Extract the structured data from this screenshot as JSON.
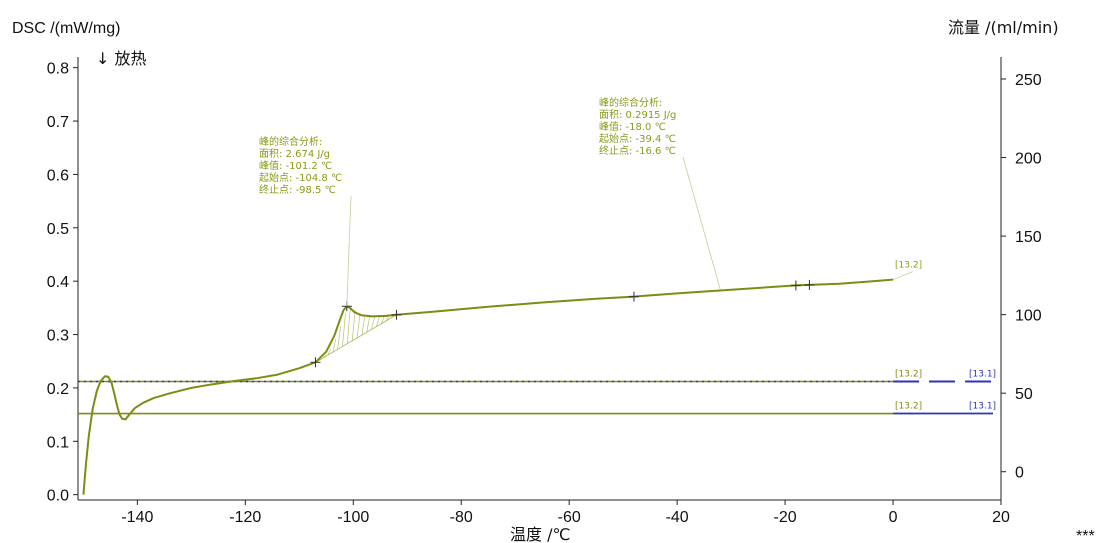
{
  "chart_data": {
    "type": "line",
    "ylabel_left": "DSC /(mW/mg)",
    "ylabel_right": "流量 /(ml/min)",
    "xlabel": "温度 /℃",
    "exo_label": "↓ 放热",
    "footnote": "***",
    "xlim": [
      -151,
      20
    ],
    "ylim_left": [
      -0.01,
      0.82
    ],
    "ylim_right": [
      -18,
      264
    ],
    "x_ticks": [
      -140,
      -120,
      -100,
      -80,
      -60,
      -40,
      -20,
      0,
      20
    ],
    "y_left_ticks": [
      0.0,
      0.1,
      0.2,
      0.3,
      0.4,
      0.5,
      0.6,
      0.7,
      0.8
    ],
    "y_right_ticks": [
      0,
      50,
      100,
      150,
      200,
      250
    ],
    "series": [
      {
        "color": "#7f8c12",
        "x": [
          -150,
          -149.5,
          -149,
          -148.3,
          -147.5,
          -146.8,
          -146,
          -145.4,
          -144.8,
          -144.3,
          -143.8,
          -143.3,
          -142.8,
          -142.2,
          -141.5,
          -140.5,
          -139,
          -137,
          -134,
          -130,
          -126,
          -122,
          -118,
          -114,
          -110,
          -107,
          -105,
          -103.5,
          -102.5,
          -101.8,
          -101.2,
          -100.6,
          -99.8,
          -98.5,
          -96.5,
          -94,
          -92,
          -85,
          -75,
          -65,
          -55,
          -48,
          -40,
          -30,
          -18,
          -15.5,
          -10,
          -5,
          0
        ],
        "y": [
          0.0,
          0.06,
          0.11,
          0.16,
          0.195,
          0.213,
          0.222,
          0.221,
          0.21,
          0.19,
          0.168,
          0.15,
          0.142,
          0.141,
          0.15,
          0.162,
          0.172,
          0.181,
          0.19,
          0.2,
          0.207,
          0.213,
          0.218,
          0.225,
          0.237,
          0.248,
          0.268,
          0.298,
          0.327,
          0.346,
          0.353,
          0.35,
          0.342,
          0.336,
          0.334,
          0.335,
          0.337,
          0.343,
          0.352,
          0.36,
          0.367,
          0.371,
          0.377,
          0.384,
          0.392,
          0.393,
          0.395,
          0.399,
          0.403
        ]
      }
    ],
    "flow_lines": [
      {
        "y_left": 0.212,
        "color_left": "#7f8c12",
        "color_right": "#2e33b8",
        "dashed_right": true,
        "x_switch": 0,
        "labels": [
          "[13.2]",
          "[13.1]"
        ]
      },
      {
        "y_left": 0.152,
        "color_left": "#7f8c12",
        "color_right": "#2e33b8",
        "dashed_right": false,
        "x_switch": 0,
        "labels": [
          "[13.2]",
          "[13.1]"
        ]
      }
    ],
    "end_tag": "[13.2]",
    "peak_markers": [
      {
        "x": -107,
        "y": 0.248
      },
      {
        "x": -101.2,
        "y": 0.353
      },
      {
        "x": -92,
        "y": 0.337
      },
      {
        "x": -48,
        "y": 0.371
      },
      {
        "x": -18,
        "y": 0.392
      },
      {
        "x": -15.5,
        "y": 0.393
      }
    ],
    "annotations": [
      {
        "lines": [
          "峰的综合分析:",
          "面积:        2.674 J/g",
          "峰值:    -101.2 ℃",
          "起始点:  -104.8 ℃",
          "终止点:    -98.5 ℃"
        ],
        "anchor": {
          "x": -101.2,
          "y": 0.353
        }
      },
      {
        "lines": [
          "峰的综合分析:",
          "面积:        0.2915 J/g",
          "峰值:      -18.0 ℃",
          "起始点:  -39.4 ℃",
          "终止点:  -16.6 ℃"
        ],
        "anchor": {
          "x": -32,
          "y": 0.384
        }
      }
    ]
  }
}
